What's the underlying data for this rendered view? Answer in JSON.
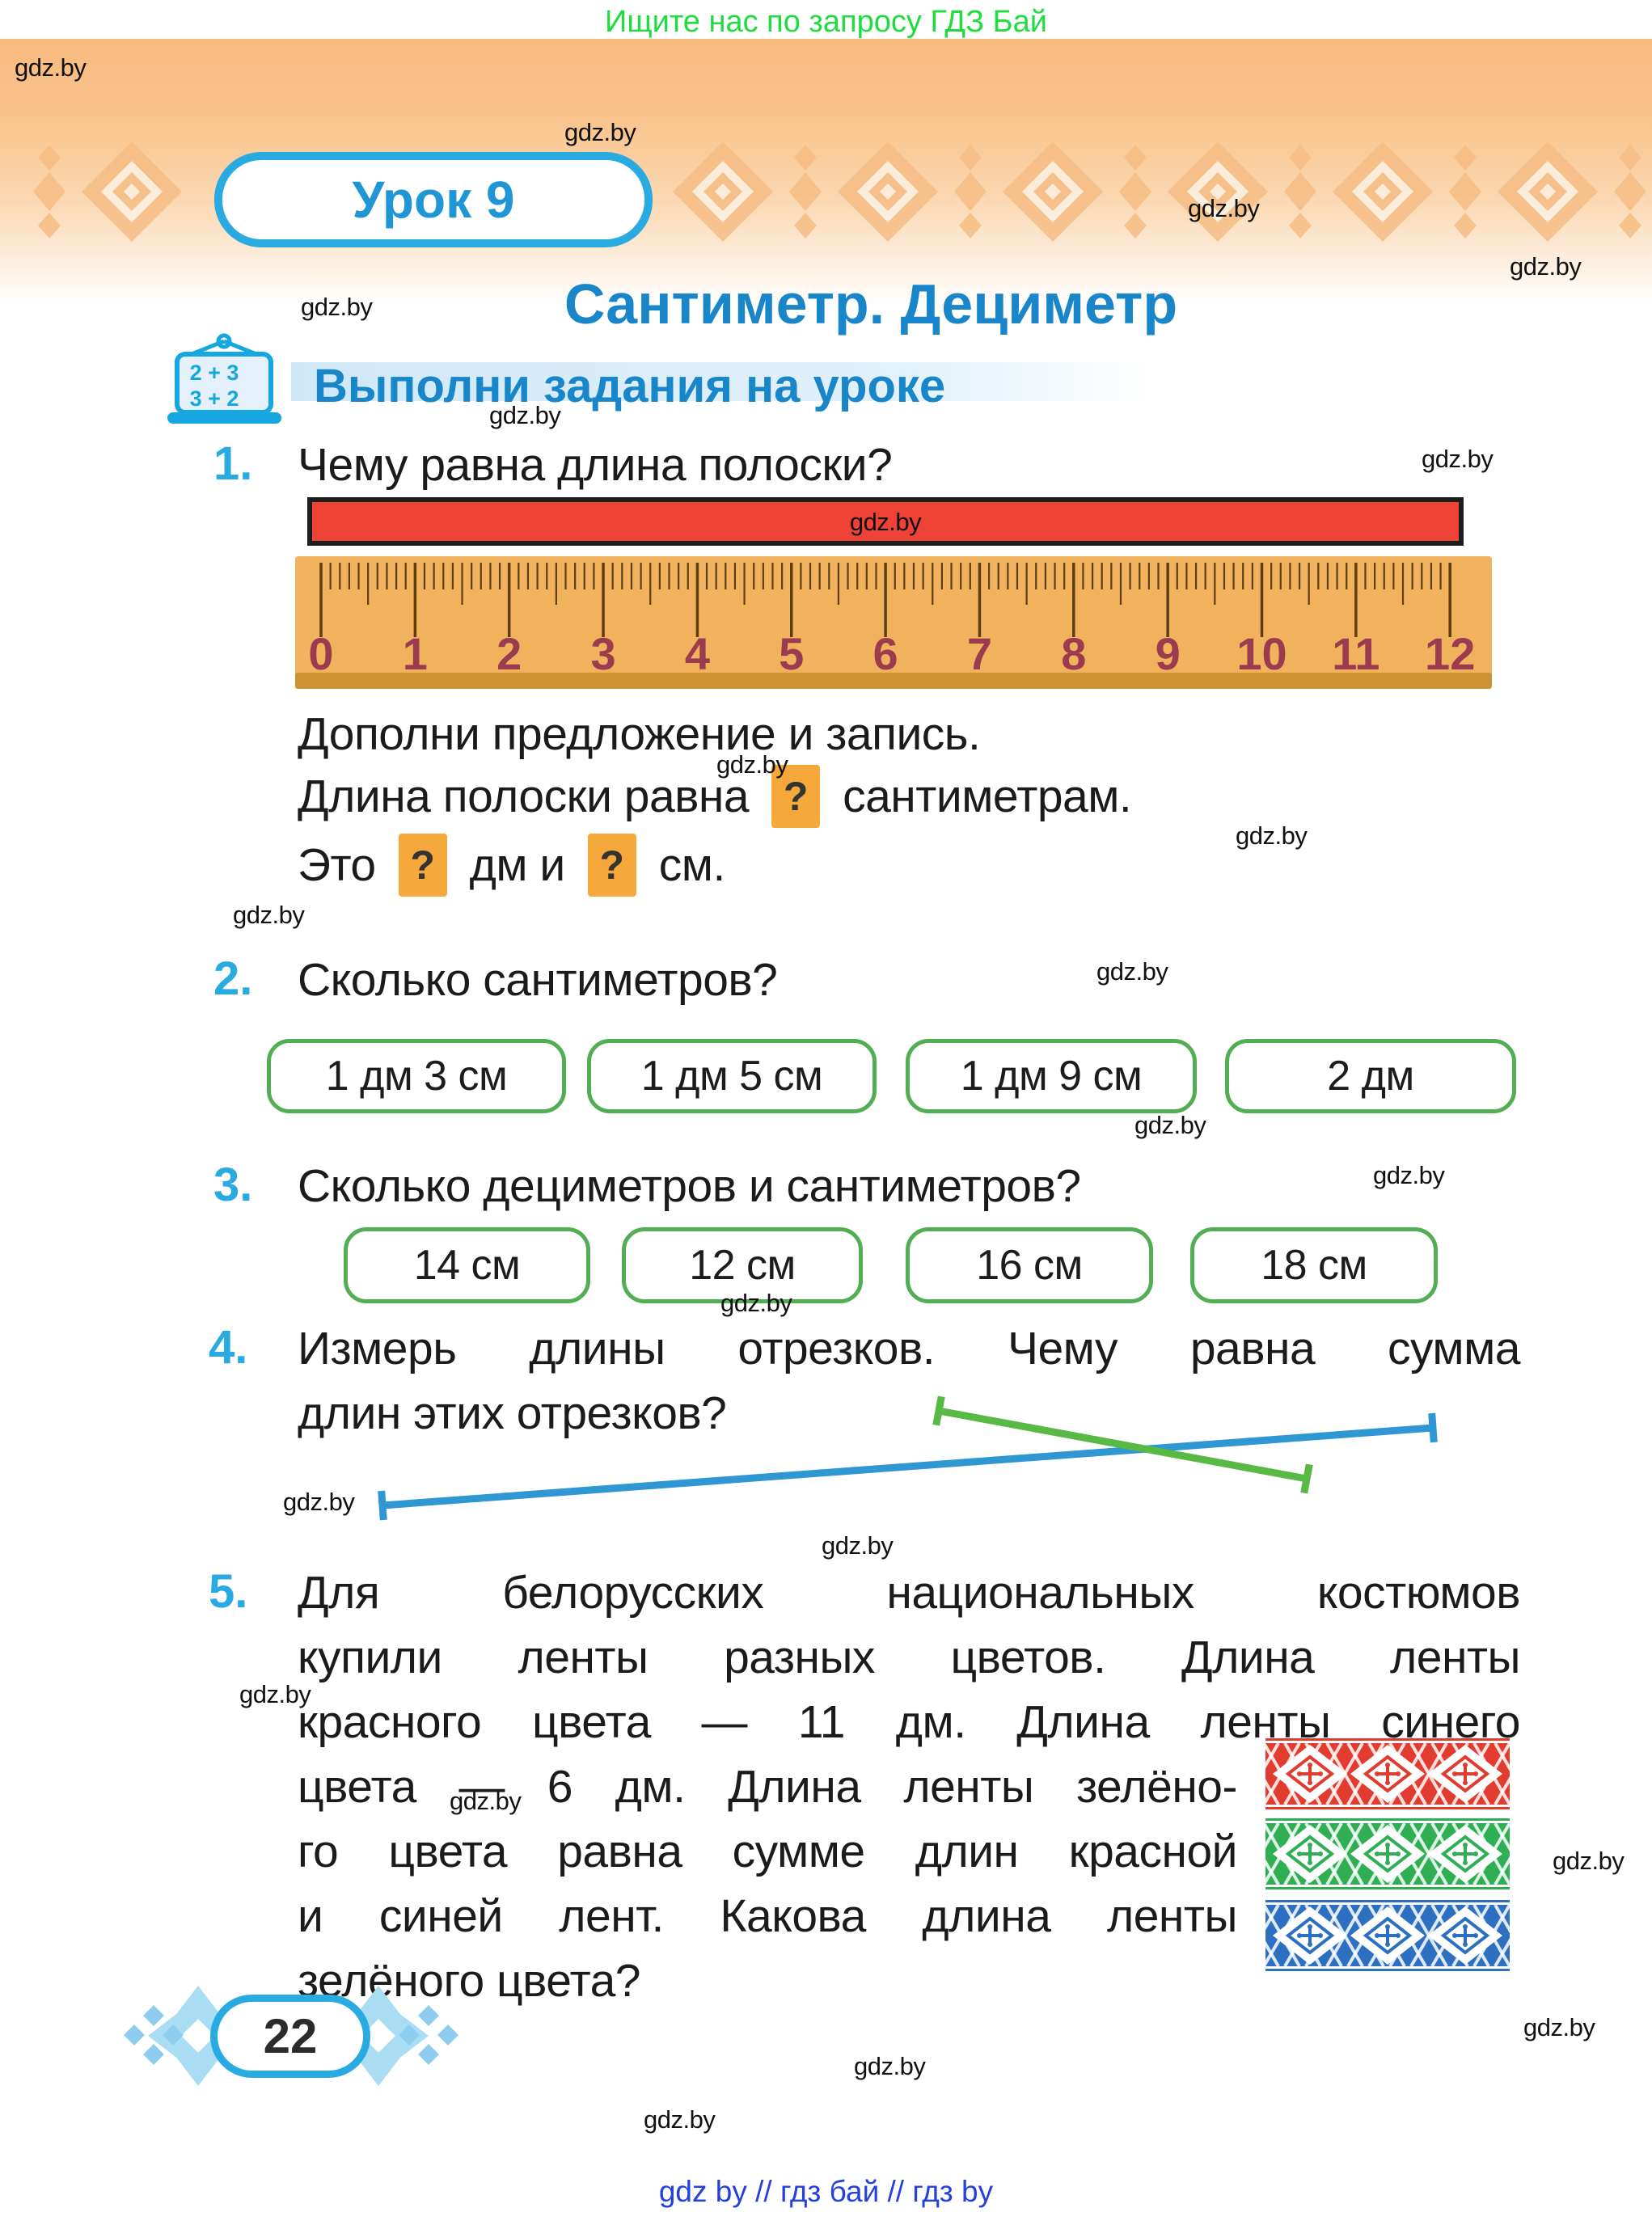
{
  "promo": {
    "text": "Ищите нас по запросу ГДЗ Бай"
  },
  "watermark": {
    "label": "gdz.by"
  },
  "header": {
    "lesson_label": "Урок 9",
    "title": "Сантиметр. Дециметр",
    "subtitle": "Выполни задания на уроке",
    "board_icon": {
      "line1": "2 + 3",
      "line2": "3 + 2"
    }
  },
  "task1": {
    "number": "1.",
    "question": "Чему равна длина полоски?",
    "ruler": {
      "unit_numbers": [
        0,
        1,
        2,
        3,
        4,
        5,
        6,
        7,
        8,
        9,
        10,
        11,
        12
      ]
    },
    "instruction": "Дополни предложение и запись.",
    "sentence": {
      "part1": "Длина полоски равна",
      "part2": "сантиметрам.",
      "part3": "Это",
      "part4": "дм и",
      "part5": "см.",
      "placeholder": "?"
    }
  },
  "task2": {
    "number": "2.",
    "question": "Сколько сантиметров?",
    "options": [
      "1 дм 3 см",
      "1 дм 5 см",
      "1 дм 9 см",
      "2 дм"
    ]
  },
  "task3": {
    "number": "3.",
    "question": "Сколько дециметров и сантиметров?",
    "options": [
      "14 см",
      "12 см",
      "16 см",
      "18 см"
    ]
  },
  "task4": {
    "number": "4.",
    "question_line1": "Измерь длины отрезков. Чему равна сумма",
    "question_line2": "длин этих отрезков?"
  },
  "task5": {
    "number": "5.",
    "lines": [
      "Для белорусских национальных костюмов",
      "купили ленты разных цветов. Длина ленты",
      "красного цвета — 11 дм. Длина ленты синего",
      "цвета — 6 дм. Длина ленты зелёно-",
      "го цвета равна сумме длин красной",
      "и синей лент. Какова длина ленты",
      "зелёного цвета?"
    ]
  },
  "ribbons": [
    {
      "name": "red-ribbon",
      "color": "#e23b30"
    },
    {
      "name": "green-ribbon",
      "color": "#2fae53"
    },
    {
      "name": "blue-ribbon",
      "color": "#2d6fc1"
    }
  ],
  "page_number": "22",
  "footer": {
    "text": "gdz by  //  гдз бай  //  гдз by"
  },
  "colors": {
    "accent_blue": "#29abe2",
    "heading_blue": "#1a86ca",
    "promo_green": "#1fdd3f",
    "strip_red": "#ee4237",
    "option_border_green": "#52ae52",
    "placeholder_orange": "#f6a83b",
    "segment_blue": "#2f97d4",
    "segment_green": "#58b944",
    "footer_blue": "#2441dd",
    "ruler_wood": "#f0b25c",
    "ruler_numbers": "#9a3b50"
  }
}
